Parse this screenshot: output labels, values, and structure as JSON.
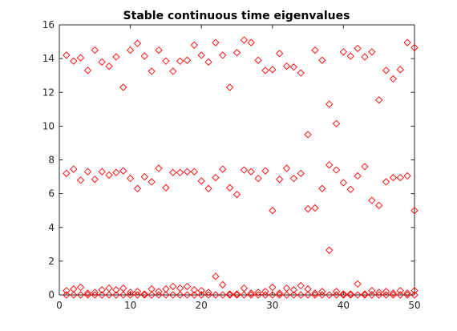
{
  "chart_data": {
    "type": "scatter",
    "title": "Stable continuous time eigenvalues",
    "xlabel": "",
    "ylabel": "",
    "xlim": [
      0,
      50
    ],
    "ylim": [
      0,
      16
    ],
    "xticks": [
      0,
      10,
      20,
      30,
      40,
      50
    ],
    "yticks": [
      0,
      2,
      4,
      6,
      8,
      10,
      12,
      14,
      16
    ],
    "grid": false,
    "legend": "none",
    "marker": "diamond",
    "color": "#ff0000",
    "series": [
      {
        "x": [
          1,
          2,
          3,
          4,
          5,
          6,
          7,
          8,
          9,
          10,
          11,
          12,
          13,
          14,
          15,
          16,
          17,
          18,
          19,
          20,
          21,
          22,
          23,
          24,
          25,
          26,
          27,
          28,
          29,
          30,
          31,
          32,
          33,
          34,
          35,
          36,
          37,
          38,
          39,
          40,
          41,
          42,
          43,
          44,
          45,
          46,
          47,
          48,
          49,
          50
        ],
        "y": [
          14.2,
          13.85,
          14.05,
          13.3,
          14.5,
          13.8,
          13.55,
          14.1,
          12.3,
          14.5,
          14.9,
          14.15,
          13.25,
          14.5,
          13.85,
          13.25,
          13.85,
          13.9,
          14.8,
          14.2,
          13.8,
          14.95,
          14.2,
          12.3,
          14.35,
          15.1,
          14.95,
          13.9,
          13.3,
          13.35,
          14.3,
          13.55,
          13.5,
          13.15,
          9.5,
          14.5,
          13.9,
          11.3,
          10.15,
          14.4,
          14.15,
          14.6,
          14.1,
          14.4,
          11.55,
          13.3,
          12.8,
          13.35,
          14.95,
          14.65
        ]
      },
      {
        "x": [
          1,
          2,
          3,
          4,
          5,
          6,
          7,
          8,
          9,
          10,
          11,
          12,
          13,
          14,
          15,
          16,
          17,
          18,
          19,
          20,
          21,
          22,
          23,
          24,
          25,
          26,
          27,
          28,
          29,
          30,
          31,
          32,
          33,
          34,
          35,
          36,
          37,
          38,
          39,
          40,
          41,
          42,
          43,
          44,
          45,
          46,
          47,
          48,
          49,
          50
        ],
        "y": [
          7.2,
          7.45,
          6.8,
          7.3,
          6.85,
          7.3,
          7.1,
          7.25,
          7.35,
          6.9,
          6.3,
          7.0,
          6.7,
          7.5,
          6.35,
          7.25,
          7.25,
          7.3,
          7.3,
          6.75,
          6.3,
          6.95,
          7.45,
          6.35,
          5.95,
          7.4,
          7.3,
          6.9,
          7.35,
          5.0,
          6.85,
          7.5,
          6.9,
          7.2,
          5.1,
          5.15,
          6.3,
          7.7,
          7.4,
          6.65,
          6.25,
          7.05,
          7.6,
          5.6,
          5.3,
          6.7,
          6.95,
          6.95,
          7.05,
          5.0
        ]
      },
      {
        "x": [
          1,
          2,
          3,
          4,
          5,
          6,
          7,
          8,
          9,
          10,
          11,
          12,
          13,
          14,
          15,
          16,
          17,
          18,
          19,
          20,
          21,
          22,
          23,
          24,
          25,
          26,
          27,
          28,
          29,
          30,
          31,
          32,
          33,
          34,
          35,
          36,
          37,
          38,
          39,
          40,
          41,
          42,
          43,
          44,
          45,
          46,
          47,
          48,
          49,
          50
        ],
        "y": [
          0.25,
          0.35,
          0.45,
          0.1,
          0.15,
          0.3,
          0.4,
          0.3,
          0.4,
          0.15,
          0.2,
          0.05,
          0.35,
          0.2,
          0.35,
          0.5,
          0.4,
          0.5,
          0.3,
          0.25,
          0.15,
          1.1,
          0.6,
          0.05,
          0.05,
          0.4,
          0.1,
          0.15,
          0.2,
          0.45,
          0.1,
          0.4,
          0.3,
          0.55,
          0.35,
          0.1,
          0.2,
          2.65,
          0.2,
          0.05,
          0.05,
          0.65,
          0.05,
          0.25,
          0.15,
          0.2,
          0.1,
          0.25,
          0.1,
          0.25
        ]
      },
      {
        "x": [
          1,
          2,
          3,
          4,
          5,
          6,
          7,
          8,
          9,
          10,
          11,
          12,
          13,
          14,
          15,
          16,
          17,
          18,
          19,
          20,
          21,
          22,
          23,
          24,
          25,
          26,
          27,
          28,
          29,
          30,
          31,
          32,
          33,
          34,
          35,
          36,
          37,
          38,
          39,
          40,
          41,
          42,
          43,
          44,
          45,
          46,
          47,
          48,
          49,
          50
        ],
        "y": [
          0,
          0,
          0,
          0,
          0,
          0,
          0,
          0,
          0,
          0,
          0,
          0,
          0,
          0,
          0,
          0,
          0,
          0,
          0,
          0,
          0,
          0,
          0,
          0,
          0,
          0,
          0,
          0,
          0,
          0,
          0,
          0,
          0,
          0,
          0,
          0,
          0,
          0,
          0,
          0,
          0,
          0,
          0,
          0,
          0,
          0,
          0,
          0,
          0,
          0
        ]
      }
    ]
  }
}
